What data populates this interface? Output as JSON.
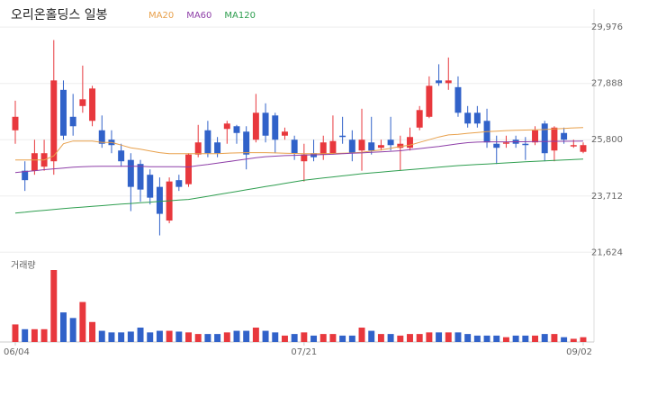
{
  "chart_data": {
    "type": "candlestick",
    "title": "오리온홀딩스 일봉",
    "categories": [
      "06/04",
      null,
      null,
      null,
      null,
      null,
      null,
      null,
      null,
      null,
      null,
      null,
      null,
      null,
      null,
      null,
      null,
      null,
      null,
      null,
      null,
      null,
      null,
      null,
      null,
      null,
      null,
      null,
      null,
      null,
      "07/21",
      null,
      null,
      null,
      null,
      null,
      null,
      null,
      null,
      null,
      null,
      null,
      null,
      null,
      null,
      null,
      null,
      null,
      null,
      null,
      null,
      null,
      null,
      null,
      null,
      null,
      null,
      null,
      null,
      "09/02"
    ],
    "open": [
      26150,
      24650,
      24650,
      24800,
      25000,
      27650,
      26650,
      27050,
      26500,
      26150,
      25800,
      25400,
      25050,
      24900,
      24500,
      24050,
      22800,
      24300,
      24150,
      25250,
      26150,
      25700,
      26200,
      26300,
      26100,
      25800,
      26800,
      26700,
      25950,
      25800,
      25000,
      25300,
      25250,
      25300,
      25950,
      25800,
      25400,
      25700,
      25500,
      25800,
      25500,
      25500,
      26250,
      26650,
      28000,
      27900,
      27750,
      26800,
      26800,
      26500,
      25650,
      25650,
      25800,
      25650,
      25700,
      26400,
      25400,
      26050,
      25550,
      25350
    ],
    "high": [
      27250,
      25000,
      25800,
      25800,
      29500,
      28000,
      27500,
      28550,
      27800,
      26700,
      26150,
      25650,
      25300,
      25050,
      24700,
      24400,
      24400,
      24500,
      25300,
      26350,
      26500,
      25900,
      26500,
      26350,
      26300,
      27500,
      27150,
      26800,
      26250,
      25950,
      25650,
      25800,
      25950,
      26700,
      26650,
      26150,
      26950,
      26650,
      25800,
      26650,
      25950,
      26250,
      27050,
      28150,
      28600,
      28850,
      28150,
      27050,
      27050,
      26950,
      25950,
      25950,
      25950,
      25900,
      26300,
      26500,
      26300,
      26250,
      25800,
      25700
    ],
    "low": [
      25650,
      23900,
      24500,
      24650,
      24500,
      25800,
      25950,
      26800,
      26300,
      25500,
      25300,
      24800,
      23150,
      23500,
      23400,
      22250,
      22700,
      23900,
      24050,
      25150,
      25150,
      25150,
      25650,
      25650,
      24700,
      25700,
      25700,
      25300,
      25800,
      25050,
      24250,
      25000,
      25050,
      25250,
      25650,
      25000,
      24650,
      25250,
      25400,
      25400,
      24650,
      25400,
      26150,
      26600,
      27800,
      27650,
      26650,
      26250,
      26250,
      25500,
      24900,
      25500,
      25500,
      25050,
      25600,
      25000,
      25000,
      25650,
      25500,
      25300
    ],
    "close": [
      26650,
      24300,
      25300,
      25300,
      28000,
      25950,
      26300,
      27300,
      27700,
      25650,
      25600,
      25000,
      24050,
      23950,
      23650,
      23050,
      24250,
      24050,
      25250,
      25700,
      25300,
      25300,
      26400,
      26050,
      25250,
      26800,
      25950,
      25800,
      26100,
      25300,
      25250,
      25150,
      25700,
      25750,
      25900,
      25300,
      25800,
      25400,
      25600,
      25600,
      25650,
      25900,
      26900,
      27800,
      27900,
      28000,
      26800,
      26400,
      26400,
      25700,
      25500,
      25700,
      25650,
      25600,
      26150,
      25300,
      26250,
      25800,
      25600,
      25600
    ],
    "up_color": "#e8383d",
    "down_color": "#3162c9",
    "series": [
      {
        "name": "MA20",
        "color": "#e8a04b",
        "values": [
          25050,
          25050,
          25050,
          25050,
          25200,
          25650,
          25750,
          25750,
          25750,
          25700,
          25700,
          25600,
          25500,
          25450,
          25380,
          25320,
          25280,
          25280,
          25280,
          25280,
          25280,
          25280,
          25300,
          25310,
          25320,
          25320,
          25320,
          25310,
          25300,
          25290,
          25280,
          25280,
          25280,
          25290,
          25300,
          25310,
          25330,
          25380,
          25420,
          25480,
          25550,
          25600,
          25700,
          25800,
          25900,
          25980,
          26000,
          26040,
          26070,
          26100,
          26120,
          26140,
          26150,
          26160,
          26170,
          26180,
          26200,
          26220,
          26240,
          26250
        ]
      },
      {
        "name": "MA60",
        "color": "#8e3fa8",
        "values": [
          24580,
          24620,
          24650,
          24690,
          24720,
          24750,
          24780,
          24800,
          24810,
          24815,
          24815,
          24815,
          24815,
          24815,
          24800,
          24800,
          24800,
          24800,
          24790,
          24840,
          24880,
          24930,
          24980,
          25030,
          25080,
          25130,
          25170,
          25190,
          25210,
          25220,
          25230,
          25240,
          25250,
          25260,
          25280,
          25300,
          25310,
          25330,
          25350,
          25370,
          25390,
          25430,
          25470,
          25510,
          25550,
          25600,
          25650,
          25690,
          25710,
          25720,
          25720,
          25720,
          25725,
          25725,
          25730,
          25735,
          25740,
          25740,
          25745,
          25750
        ]
      },
      {
        "name": "MA120",
        "color": "#2e9e4f",
        "values": [
          23080,
          23110,
          23150,
          23180,
          23215,
          23245,
          23275,
          23300,
          23330,
          23355,
          23385,
          23410,
          23435,
          23460,
          23485,
          23510,
          23535,
          23560,
          23585,
          23640,
          23700,
          23760,
          23820,
          23880,
          23940,
          24000,
          24060,
          24120,
          24180,
          24240,
          24300,
          24340,
          24380,
          24420,
          24460,
          24500,
          24540,
          24570,
          24600,
          24630,
          24660,
          24690,
          24720,
          24750,
          24780,
          24810,
          24840,
          24860,
          24880,
          24900,
          24920,
          24940,
          24960,
          24980,
          25000,
          25015,
          25030,
          25050,
          25065,
          25080
        ]
      }
    ],
    "volume": {
      "label": "거래량",
      "values": [
        22,
        16,
        16,
        16,
        90,
        37,
        30,
        50,
        25,
        14,
        12,
        12,
        13,
        18,
        12,
        14,
        14,
        13,
        12,
        10,
        10,
        10,
        12,
        14,
        14,
        18,
        14,
        12,
        8,
        10,
        12,
        8,
        10,
        10,
        8,
        8,
        18,
        14,
        10,
        10,
        8,
        10,
        10,
        12,
        12,
        12,
        12,
        10,
        8,
        8,
        8,
        6,
        8,
        8,
        8,
        10,
        10,
        6,
        4,
        6
      ]
    },
    "ylim": [
      21300,
      30650
    ],
    "yticks": [
      {
        "value": 21624,
        "label": "21,624"
      },
      {
        "value": 23712,
        "label": "23,712"
      },
      {
        "value": 25800,
        "label": "25,800"
      },
      {
        "value": 27888,
        "label": "27,888"
      },
      {
        "value": 29976,
        "label": "29,976"
      }
    ],
    "grid": true
  }
}
